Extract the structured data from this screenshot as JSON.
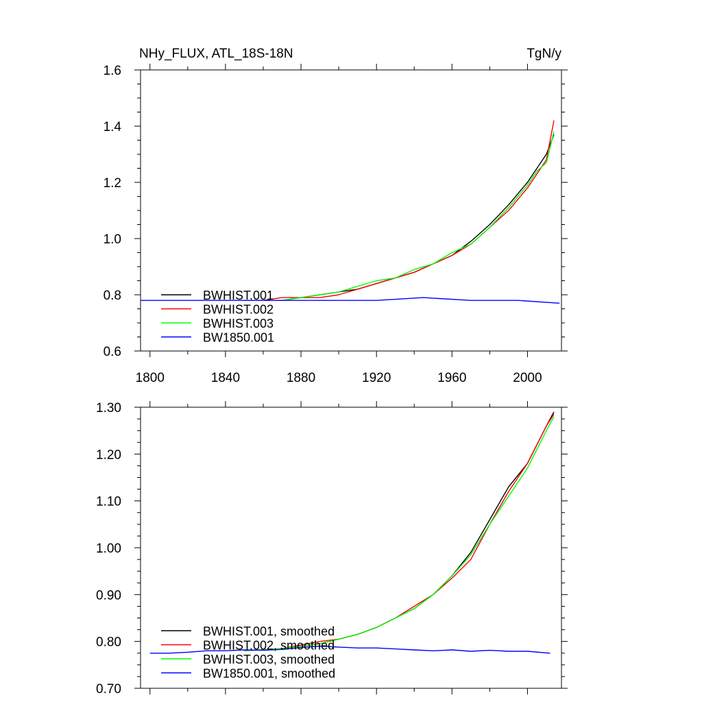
{
  "header": {
    "left_title": "NHy_FLUX, ATL_18S-18N",
    "right_title": "TgN/y"
  },
  "colors": {
    "BWHIST.001": "#000000",
    "BWHIST.002": "#ff0000",
    "BWHIST.003": "#00ff00",
    "BW1850.001": "#0000ff"
  },
  "chart_data": [
    {
      "type": "line",
      "panel": "top",
      "xlim": [
        1795,
        2018
      ],
      "ylim": [
        0.6,
        1.6
      ],
      "xticks": [
        1800,
        1840,
        1880,
        1920,
        1960,
        2000
      ],
      "xtick_labels": [
        "1800",
        "1840",
        "1880",
        "1920",
        "1960",
        "2000"
      ],
      "yticks": [
        0.6,
        0.8,
        1.0,
        1.2,
        1.4,
        1.6
      ],
      "ytick_labels": [
        "0.6",
        "0.8",
        "1.0",
        "1.2",
        "1.4",
        "1.6"
      ],
      "legend_position": "bottom-left",
      "grid": false,
      "series": [
        {
          "name": "BWHIST.001",
          "color": "#000000",
          "x": [
            1850,
            1860,
            1870,
            1880,
            1890,
            1900,
            1910,
            1920,
            1930,
            1940,
            1950,
            1960,
            1970,
            1980,
            1990,
            2000,
            2005,
            2010,
            2014
          ],
          "y": [
            0.78,
            0.78,
            0.78,
            0.79,
            0.8,
            0.81,
            0.82,
            0.84,
            0.86,
            0.88,
            0.91,
            0.94,
            0.99,
            1.05,
            1.12,
            1.2,
            1.25,
            1.3,
            1.37
          ]
        },
        {
          "name": "BWHIST.002",
          "color": "#ff0000",
          "x": [
            1850,
            1860,
            1870,
            1880,
            1890,
            1900,
            1910,
            1920,
            1930,
            1940,
            1950,
            1960,
            1970,
            1980,
            1990,
            2000,
            2005,
            2010,
            2014
          ],
          "y": [
            0.78,
            0.78,
            0.79,
            0.79,
            0.79,
            0.8,
            0.82,
            0.84,
            0.86,
            0.88,
            0.91,
            0.94,
            0.98,
            1.04,
            1.1,
            1.18,
            1.23,
            1.28,
            1.42
          ]
        },
        {
          "name": "BWHIST.003",
          "color": "#00ff00",
          "x": [
            1850,
            1860,
            1870,
            1880,
            1890,
            1900,
            1910,
            1920,
            1930,
            1940,
            1950,
            1960,
            1970,
            1980,
            1990,
            2000,
            2005,
            2010,
            2014
          ],
          "y": [
            0.78,
            0.78,
            0.78,
            0.79,
            0.8,
            0.81,
            0.83,
            0.85,
            0.86,
            0.89,
            0.91,
            0.95,
            0.98,
            1.04,
            1.11,
            1.19,
            1.24,
            1.27,
            1.38
          ]
        },
        {
          "name": "BW1850.001",
          "color": "#0000ff",
          "x": [
            1795,
            1820,
            1845,
            1870,
            1895,
            1920,
            1945,
            1970,
            1995,
            2017
          ],
          "y": [
            0.78,
            0.78,
            0.78,
            0.78,
            0.78,
            0.78,
            0.79,
            0.78,
            0.78,
            0.77
          ]
        }
      ]
    },
    {
      "type": "line",
      "panel": "bottom",
      "xlim": [
        1795,
        2018
      ],
      "ylim": [
        0.7,
        1.3
      ],
      "xticks": [
        1800,
        1840,
        1880,
        1920,
        1960,
        2000
      ],
      "xtick_labels": [],
      "yticks": [
        0.7,
        0.8,
        0.9,
        1.0,
        1.1,
        1.2,
        1.3
      ],
      "ytick_labels": [
        "0.70",
        "0.80",
        "0.90",
        "1.00",
        "1.10",
        "1.20",
        "1.30"
      ],
      "legend_position": "bottom-left",
      "grid": false,
      "series": [
        {
          "name": "BWHIST.001, smoothed",
          "color": "#000000",
          "x": [
            1850,
            1870,
            1890,
            1900,
            1910,
            1920,
            1930,
            1940,
            1950,
            1960,
            1970,
            1980,
            1990,
            2000,
            2005,
            2010,
            2014
          ],
          "y": [
            0.78,
            0.785,
            0.795,
            0.805,
            0.815,
            0.83,
            0.85,
            0.87,
            0.9,
            0.94,
            0.99,
            1.06,
            1.13,
            1.18,
            1.22,
            1.26,
            1.29
          ]
        },
        {
          "name": "BWHIST.002, smoothed",
          "color": "#ff0000",
          "x": [
            1850,
            1870,
            1890,
            1900,
            1910,
            1920,
            1930,
            1940,
            1950,
            1960,
            1970,
            1980,
            1990,
            2000,
            2005,
            2010,
            2014
          ],
          "y": [
            0.78,
            0.785,
            0.8,
            0.805,
            0.815,
            0.83,
            0.85,
            0.875,
            0.9,
            0.935,
            0.975,
            1.05,
            1.12,
            1.18,
            1.22,
            1.26,
            1.285
          ]
        },
        {
          "name": "BWHIST.003, smoothed",
          "color": "#00ff00",
          "x": [
            1850,
            1870,
            1890,
            1900,
            1910,
            1920,
            1930,
            1940,
            1950,
            1960,
            1970,
            1980,
            1990,
            2000,
            2005,
            2010,
            2014
          ],
          "y": [
            0.78,
            0.785,
            0.795,
            0.805,
            0.815,
            0.83,
            0.85,
            0.87,
            0.9,
            0.94,
            0.985,
            1.05,
            1.11,
            1.17,
            1.21,
            1.25,
            1.28
          ]
        },
        {
          "name": "BW1850.001, smoothed",
          "color": "#0000ff",
          "x": [
            1800,
            1810,
            1820,
            1830,
            1840,
            1850,
            1860,
            1870,
            1880,
            1890,
            1900,
            1910,
            1920,
            1930,
            1940,
            1950,
            1960,
            1970,
            1980,
            1990,
            2000,
            2012
          ],
          "y": [
            0.775,
            0.775,
            0.777,
            0.78,
            0.78,
            0.782,
            0.781,
            0.783,
            0.787,
            0.79,
            0.788,
            0.786,
            0.786,
            0.784,
            0.782,
            0.78,
            0.782,
            0.779,
            0.781,
            0.779,
            0.779,
            0.775
          ]
        }
      ]
    }
  ]
}
